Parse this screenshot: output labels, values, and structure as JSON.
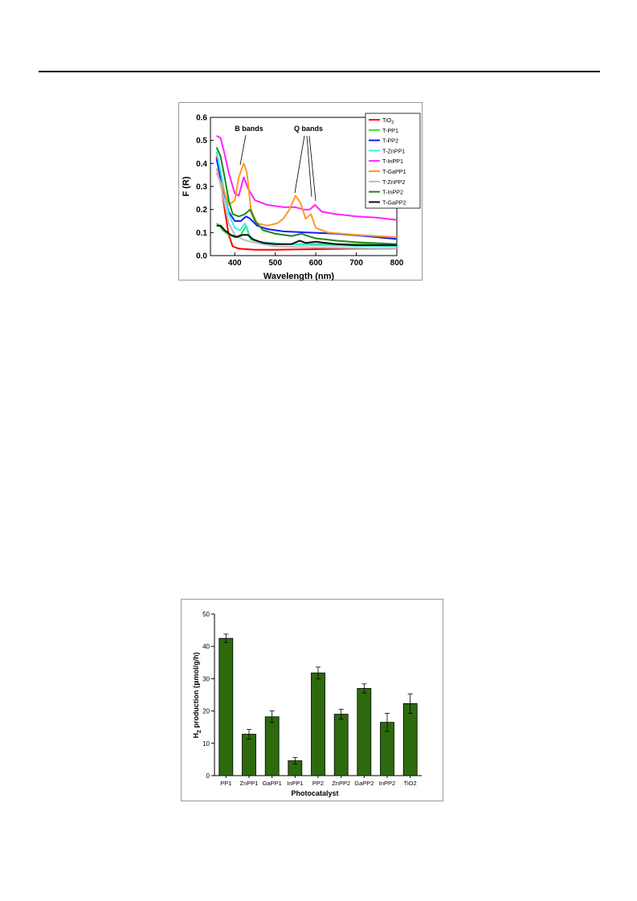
{
  "chart_data": [
    {
      "type": "line",
      "title": "",
      "xlabel": "Wavelength (nm)",
      "ylabel": "F (R)",
      "xlim": [
        340,
        800
      ],
      "ylim": [
        0,
        0.6
      ],
      "x_ticks": [
        "400",
        "500",
        "600",
        "700",
        "800"
      ],
      "y_ticks": [
        "0.0",
        "0.1",
        "0.2",
        "0.3",
        "0.4",
        "0.5",
        "0.6"
      ],
      "legend_position": "top-right",
      "annotations": [
        "B bands",
        "Q bands"
      ],
      "series": [
        {
          "name": "TiO",
          "name_sub": "2",
          "color": "#ff0000",
          "points": [
            [
              355,
              0.43
            ],
            [
              365,
              0.33
            ],
            [
              375,
              0.2
            ],
            [
              385,
              0.09
            ],
            [
              395,
              0.04
            ],
            [
              410,
              0.03
            ],
            [
              450,
              0.025
            ],
            [
              500,
              0.025
            ],
            [
              600,
              0.028
            ],
            [
              700,
              0.03
            ],
            [
              800,
              0.03
            ]
          ]
        },
        {
          "name": "T-PP1",
          "color": "#33dd33",
          "points": [
            [
              355,
              0.14
            ],
            [
              362,
              0.13
            ],
            [
              370,
              0.11
            ],
            [
              385,
              0.09
            ],
            [
              400,
              0.08
            ],
            [
              415,
              0.09
            ],
            [
              428,
              0.13
            ],
            [
              440,
              0.07
            ],
            [
              460,
              0.06
            ],
            [
              500,
              0.05
            ],
            [
              550,
              0.05
            ],
            [
              600,
              0.05
            ],
            [
              700,
              0.05
            ],
            [
              800,
              0.05
            ]
          ]
        },
        {
          "name": "T-PP2",
          "color": "#1a1aff",
          "points": [
            [
              355,
              0.42
            ],
            [
              370,
              0.3
            ],
            [
              385,
              0.19
            ],
            [
              400,
              0.15
            ],
            [
              415,
              0.15
            ],
            [
              428,
              0.17
            ],
            [
              438,
              0.16
            ],
            [
              455,
              0.13
            ],
            [
              480,
              0.115
            ],
            [
              520,
              0.105
            ],
            [
              580,
              0.1
            ],
            [
              650,
              0.095
            ],
            [
              720,
              0.085
            ],
            [
              800,
              0.072
            ]
          ]
        },
        {
          "name": "T-ZnPP1",
          "color": "#33eeee",
          "points": [
            [
              355,
              0.45
            ],
            [
              370,
              0.32
            ],
            [
              385,
              0.18
            ],
            [
              400,
              0.12
            ],
            [
              413,
              0.11
            ],
            [
              425,
              0.14
            ],
            [
              437,
              0.08
            ],
            [
              460,
              0.06
            ],
            [
              520,
              0.05
            ],
            [
              600,
              0.045
            ],
            [
              800,
              0.04
            ]
          ]
        },
        {
          "name": "T-InPP1",
          "color": "#ff22ff",
          "points": [
            [
              355,
              0.52
            ],
            [
              365,
              0.51
            ],
            [
              375,
              0.44
            ],
            [
              385,
              0.36
            ],
            [
              400,
              0.27
            ],
            [
              410,
              0.26
            ],
            [
              422,
              0.34
            ],
            [
              433,
              0.29
            ],
            [
              450,
              0.24
            ],
            [
              480,
              0.22
            ],
            [
              520,
              0.21
            ],
            [
              550,
              0.21
            ],
            [
              570,
              0.2
            ],
            [
              585,
              0.2
            ],
            [
              598,
              0.22
            ],
            [
              615,
              0.19
            ],
            [
              650,
              0.18
            ],
            [
              700,
              0.17
            ],
            [
              750,
              0.165
            ],
            [
              800,
              0.155
            ]
          ]
        },
        {
          "name": "T-GaPP1",
          "color": "#ff9922",
          "points": [
            [
              355,
              0.36
            ],
            [
              370,
              0.3
            ],
            [
              385,
              0.22
            ],
            [
              400,
              0.24
            ],
            [
              410,
              0.34
            ],
            [
              422,
              0.4
            ],
            [
              430,
              0.36
            ],
            [
              440,
              0.2
            ],
            [
              455,
              0.14
            ],
            [
              480,
              0.13
            ],
            [
              505,
              0.14
            ],
            [
              520,
              0.16
            ],
            [
              535,
              0.2
            ],
            [
              550,
              0.26
            ],
            [
              562,
              0.23
            ],
            [
              575,
              0.16
            ],
            [
              588,
              0.18
            ],
            [
              600,
              0.12
            ],
            [
              630,
              0.1
            ],
            [
              700,
              0.09
            ],
            [
              800,
              0.08
            ]
          ]
        },
        {
          "name": "T-ZnPP2",
          "color": "#bbbbbb",
          "points": [
            [
              355,
              0.38
            ],
            [
              370,
              0.27
            ],
            [
              385,
              0.14
            ],
            [
              400,
              0.09
            ],
            [
              420,
              0.07
            ],
            [
              440,
              0.06
            ],
            [
              500,
              0.04
            ],
            [
              600,
              0.035
            ],
            [
              800,
              0.03
            ]
          ]
        },
        {
          "name": "T-InPP2",
          "color": "#1a8a1a",
          "points": [
            [
              355,
              0.47
            ],
            [
              365,
              0.43
            ],
            [
              375,
              0.34
            ],
            [
              385,
              0.24
            ],
            [
              395,
              0.18
            ],
            [
              410,
              0.17
            ],
            [
              425,
              0.18
            ],
            [
              438,
              0.2
            ],
            [
              450,
              0.15
            ],
            [
              470,
              0.11
            ],
            [
              500,
              0.095
            ],
            [
              540,
              0.085
            ],
            [
              565,
              0.095
            ],
            [
              580,
              0.085
            ],
            [
              600,
              0.075
            ],
            [
              650,
              0.065
            ],
            [
              700,
              0.058
            ],
            [
              800,
              0.05
            ]
          ]
        },
        {
          "name": "T-GaPP2",
          "color": "#111111",
          "points": [
            [
              355,
              0.13
            ],
            [
              365,
              0.13
            ],
            [
              375,
              0.11
            ],
            [
              390,
              0.09
            ],
            [
              405,
              0.08
            ],
            [
              420,
              0.09
            ],
            [
              432,
              0.09
            ],
            [
              445,
              0.07
            ],
            [
              470,
              0.055
            ],
            [
              500,
              0.05
            ],
            [
              540,
              0.05
            ],
            [
              560,
              0.065
            ],
            [
              575,
              0.055
            ],
            [
              600,
              0.06
            ],
            [
              650,
              0.05
            ],
            [
              700,
              0.045
            ],
            [
              800,
              0.045
            ]
          ]
        }
      ]
    },
    {
      "type": "bar",
      "title": "",
      "xlabel": "Photocatalyst",
      "ylabel_parts": [
        "H",
        "2",
        " production (",
        "μ",
        "mol/g/h)"
      ],
      "ylim": [
        0,
        50
      ],
      "y_ticks": [
        "0",
        "10",
        "20",
        "30",
        "40",
        "50"
      ],
      "bar_color": "#2d6a0d",
      "categories": [
        "PP1",
        "ZnPP1",
        "GaPP1",
        "InPP1",
        "PP2",
        "ZnPP2",
        "GaPP2",
        "InPP2",
        "TiO2"
      ],
      "values": [
        42.5,
        12.8,
        18.2,
        4.6,
        31.8,
        19.0,
        27.0,
        16.5,
        22.3
      ],
      "errors": [
        1.3,
        1.5,
        1.8,
        1.0,
        1.8,
        1.5,
        1.4,
        2.8,
        3.0
      ]
    }
  ]
}
